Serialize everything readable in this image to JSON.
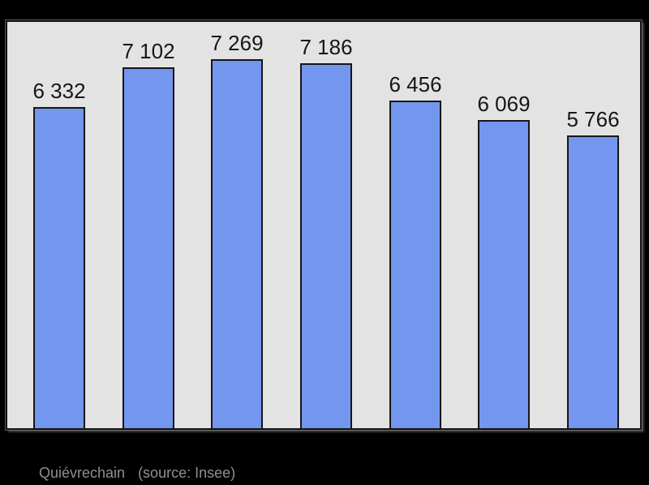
{
  "page": {
    "background_color": "#000000"
  },
  "chart_data": {
    "type": "bar",
    "values": [
      6332,
      7102,
      7269,
      7186,
      6456,
      6069,
      5766
    ],
    "value_labels": [
      "6 332",
      "7 102",
      "7 269",
      "7 186",
      "6 456",
      "6 069",
      "5 766"
    ],
    "categories": [
      "",
      "",
      "",
      "",
      "",
      "",
      ""
    ],
    "title": "",
    "xlabel": "",
    "ylabel": "",
    "ylim": [
      0,
      7269
    ],
    "grid": false,
    "legend": false,
    "bar_fill_color": "#7396ee",
    "bar_border_color": "#161616",
    "plot_background_color": "#e3e3e3",
    "plot_border_color": "#111111",
    "label_text_color": "#161616"
  },
  "footer": {
    "title": "Quiévrechain",
    "source": "(source: Insee)",
    "text_color": "#909090"
  }
}
